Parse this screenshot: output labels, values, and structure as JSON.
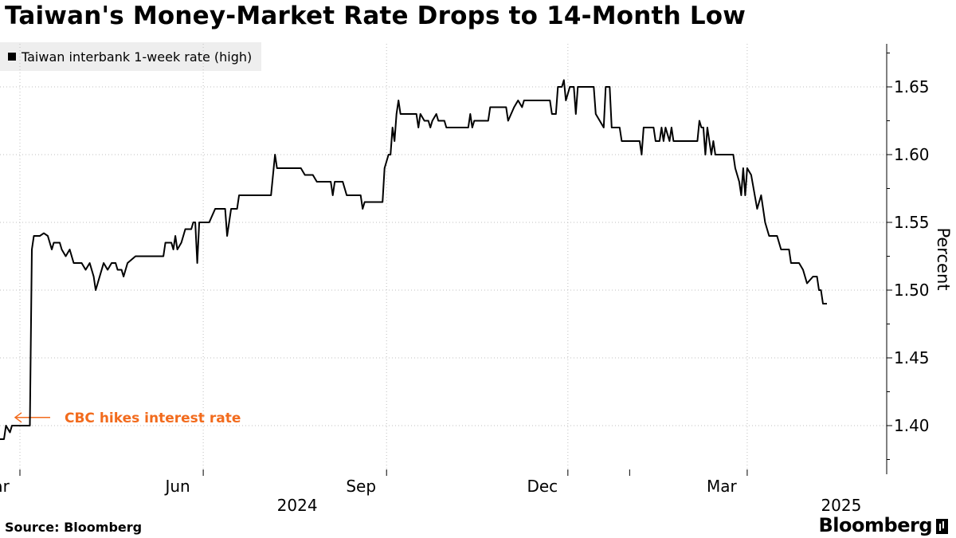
{
  "title": "Taiwan's Money-Market Rate Drops to 14-Month Low",
  "legend": {
    "label": "Taiwan interbank 1-week rate (high)"
  },
  "source": "Source: Bloomberg",
  "brand": "Bloomberg",
  "colors": {
    "line": "#000000",
    "annotation": "#f26b1d",
    "grid": "#bfbfbf",
    "legend_bg": "#eeeeee"
  },
  "chart_data": {
    "type": "line",
    "title": "Taiwan's Money-Market Rate Drops to 14-Month Low",
    "ylabel": "Percent",
    "xlabel": "",
    "ylim": [
      1.37,
      1.68
    ],
    "xlim": [
      "2024-02-20",
      "2025-05-10"
    ],
    "y_ticks": [
      1.4,
      1.45,
      1.5,
      1.55,
      1.6,
      1.65
    ],
    "x_ticks": [
      {
        "date": "2024-03-01",
        "label": "Mar",
        "year": ""
      },
      {
        "date": "2024-06-01",
        "label": "Jun",
        "year": "2024"
      },
      {
        "date": "2024-09-01",
        "label": "Sep",
        "year": ""
      },
      {
        "date": "2024-12-01",
        "label": "Dec",
        "year": ""
      },
      {
        "date": "2025-03-01",
        "label": "Mar",
        "year": "2025"
      }
    ],
    "grid": true,
    "legend_position": "top-left",
    "annotations": [
      {
        "text": "CBC hikes interest rate",
        "date": "2024-03-01",
        "value": 1.406
      }
    ],
    "series": [
      {
        "name": "Taiwan interbank 1-week rate (high)",
        "points": [
          [
            "2024-02-20",
            1.39
          ],
          [
            "2024-02-22",
            1.39
          ],
          [
            "2024-02-23",
            1.4
          ],
          [
            "2024-02-25",
            1.395
          ],
          [
            "2024-02-26",
            1.4
          ],
          [
            "2024-02-28",
            1.4
          ],
          [
            "2024-03-05",
            1.4
          ],
          [
            "2024-03-06",
            1.4
          ],
          [
            "2024-03-07",
            1.53
          ],
          [
            "2024-03-08",
            1.54
          ],
          [
            "2024-03-10",
            1.54
          ],
          [
            "2024-03-11",
            1.54
          ],
          [
            "2024-03-13",
            1.542
          ],
          [
            "2024-03-15",
            1.54
          ],
          [
            "2024-03-17",
            1.53
          ],
          [
            "2024-03-18",
            1.535
          ],
          [
            "2024-03-21",
            1.535
          ],
          [
            "2024-03-22",
            1.53
          ],
          [
            "2024-03-24",
            1.525
          ],
          [
            "2024-03-26",
            1.53
          ],
          [
            "2024-03-28",
            1.52
          ],
          [
            "2024-04-01",
            1.52
          ],
          [
            "2024-04-03",
            1.515
          ],
          [
            "2024-04-05",
            1.52
          ],
          [
            "2024-04-07",
            1.51
          ],
          [
            "2024-04-08",
            1.5
          ],
          [
            "2024-04-10",
            1.51
          ],
          [
            "2024-04-12",
            1.52
          ],
          [
            "2024-04-14",
            1.515
          ],
          [
            "2024-04-16",
            1.52
          ],
          [
            "2024-04-18",
            1.52
          ],
          [
            "2024-04-19",
            1.515
          ],
          [
            "2024-04-21",
            1.515
          ],
          [
            "2024-04-22",
            1.51
          ],
          [
            "2024-04-24",
            1.52
          ],
          [
            "2024-04-28",
            1.525
          ],
          [
            "2024-05-10",
            1.525
          ],
          [
            "2024-05-12",
            1.525
          ],
          [
            "2024-05-13",
            1.535
          ],
          [
            "2024-05-16",
            1.535
          ],
          [
            "2024-05-17",
            1.53
          ],
          [
            "2024-05-18",
            1.54
          ],
          [
            "2024-05-19",
            1.53
          ],
          [
            "2024-05-21",
            1.535
          ],
          [
            "2024-05-23",
            1.545
          ],
          [
            "2024-05-26",
            1.545
          ],
          [
            "2024-05-27",
            1.55
          ],
          [
            "2024-05-28",
            1.55
          ],
          [
            "2024-05-29",
            1.52
          ],
          [
            "2024-05-30",
            1.55
          ],
          [
            "2024-06-04",
            1.55
          ],
          [
            "2024-06-07",
            1.56
          ],
          [
            "2024-06-12",
            1.56
          ],
          [
            "2024-06-13",
            1.54
          ],
          [
            "2024-06-15",
            1.56
          ],
          [
            "2024-06-18",
            1.56
          ],
          [
            "2024-06-19",
            1.57
          ],
          [
            "2024-07-05",
            1.57
          ],
          [
            "2024-07-07",
            1.6
          ],
          [
            "2024-07-08",
            1.59
          ],
          [
            "2024-07-20",
            1.59
          ],
          [
            "2024-07-22",
            1.585
          ],
          [
            "2024-07-26",
            1.585
          ],
          [
            "2024-07-28",
            1.58
          ],
          [
            "2024-08-04",
            1.58
          ],
          [
            "2024-08-05",
            1.57
          ],
          [
            "2024-08-06",
            1.58
          ],
          [
            "2024-08-10",
            1.58
          ],
          [
            "2024-08-12",
            1.57
          ],
          [
            "2024-08-19",
            1.57
          ],
          [
            "2024-08-20",
            1.56
          ],
          [
            "2024-08-21",
            1.565
          ],
          [
            "2024-08-30",
            1.565
          ],
          [
            "2024-08-31",
            1.59
          ],
          [
            "2024-09-02",
            1.6
          ],
          [
            "2024-09-03",
            1.6
          ],
          [
            "2024-09-04",
            1.62
          ],
          [
            "2024-09-05",
            1.61
          ],
          [
            "2024-09-06",
            1.63
          ],
          [
            "2024-09-07",
            1.64
          ],
          [
            "2024-09-08",
            1.63
          ],
          [
            "2024-09-16",
            1.63
          ],
          [
            "2024-09-17",
            1.62
          ],
          [
            "2024-09-18",
            1.63
          ],
          [
            "2024-09-20",
            1.625
          ],
          [
            "2024-09-22",
            1.625
          ],
          [
            "2024-09-23",
            1.62
          ],
          [
            "2024-09-24",
            1.625
          ],
          [
            "2024-09-26",
            1.63
          ],
          [
            "2024-09-27",
            1.625
          ],
          [
            "2024-09-30",
            1.625
          ],
          [
            "2024-10-01",
            1.62
          ],
          [
            "2024-10-12",
            1.62
          ],
          [
            "2024-10-13",
            1.63
          ],
          [
            "2024-10-14",
            1.62
          ],
          [
            "2024-10-15",
            1.625
          ],
          [
            "2024-10-22",
            1.625
          ],
          [
            "2024-10-23",
            1.635
          ],
          [
            "2024-10-31",
            1.635
          ],
          [
            "2024-11-01",
            1.625
          ],
          [
            "2024-11-04",
            1.635
          ],
          [
            "2024-11-06",
            1.64
          ],
          [
            "2024-11-08",
            1.635
          ],
          [
            "2024-11-09",
            1.64
          ],
          [
            "2024-11-22",
            1.64
          ],
          [
            "2024-11-23",
            1.63
          ],
          [
            "2024-11-25",
            1.63
          ],
          [
            "2024-11-26",
            1.65
          ],
          [
            "2024-11-28",
            1.65
          ],
          [
            "2024-11-29",
            1.655
          ],
          [
            "2024-11-30",
            1.64
          ],
          [
            "2024-12-02",
            1.65
          ],
          [
            "2024-12-04",
            1.65
          ],
          [
            "2024-12-05",
            1.63
          ],
          [
            "2024-12-06",
            1.65
          ],
          [
            "2024-12-14",
            1.65
          ],
          [
            "2024-12-15",
            1.63
          ],
          [
            "2024-12-19",
            1.62
          ],
          [
            "2024-12-20",
            1.65
          ],
          [
            "2024-12-22",
            1.65
          ],
          [
            "2024-12-23",
            1.62
          ],
          [
            "2024-12-27",
            1.62
          ],
          [
            "2024-12-28",
            1.61
          ],
          [
            "2025-01-06",
            1.61
          ],
          [
            "2025-01-07",
            1.6
          ],
          [
            "2025-01-08",
            1.62
          ],
          [
            "2025-01-13",
            1.62
          ],
          [
            "2025-01-14",
            1.61
          ],
          [
            "2025-01-16",
            1.61
          ],
          [
            "2025-01-17",
            1.62
          ],
          [
            "2025-01-18",
            1.61
          ],
          [
            "2025-01-19",
            1.62
          ],
          [
            "2025-01-21",
            1.61
          ],
          [
            "2025-01-22",
            1.62
          ],
          [
            "2025-01-23",
            1.61
          ],
          [
            "2025-02-04",
            1.61
          ],
          [
            "2025-02-05",
            1.625
          ],
          [
            "2025-02-06",
            1.62
          ],
          [
            "2025-02-07",
            1.62
          ],
          [
            "2025-02-08",
            1.6
          ],
          [
            "2025-02-09",
            1.62
          ],
          [
            "2025-02-10",
            1.61
          ],
          [
            "2025-02-11",
            1.6
          ],
          [
            "2025-02-12",
            1.61
          ],
          [
            "2025-02-13",
            1.6
          ],
          [
            "2025-02-22",
            1.6
          ],
          [
            "2025-02-23",
            1.59
          ],
          [
            "2025-02-25",
            1.58
          ],
          [
            "2025-02-26",
            1.57
          ],
          [
            "2025-02-27",
            1.59
          ],
          [
            "2025-02-28",
            1.57
          ],
          [
            "2025-03-01",
            1.59
          ],
          [
            "2025-03-03",
            1.585
          ],
          [
            "2025-03-06",
            1.56
          ],
          [
            "2025-03-08",
            1.57
          ],
          [
            "2025-03-10",
            1.55
          ],
          [
            "2025-03-12",
            1.54
          ],
          [
            "2025-03-16",
            1.54
          ],
          [
            "2025-03-18",
            1.53
          ],
          [
            "2025-03-22",
            1.53
          ],
          [
            "2025-03-23",
            1.52
          ],
          [
            "2025-03-27",
            1.52
          ],
          [
            "2025-03-29",
            1.515
          ],
          [
            "2025-03-31",
            1.505
          ],
          [
            "2025-04-03",
            1.51
          ],
          [
            "2025-04-05",
            1.51
          ],
          [
            "2025-04-06",
            1.5
          ],
          [
            "2025-04-07",
            1.5
          ],
          [
            "2025-04-08",
            1.49
          ],
          [
            "2025-04-10",
            1.49
          ]
        ]
      }
    ]
  }
}
